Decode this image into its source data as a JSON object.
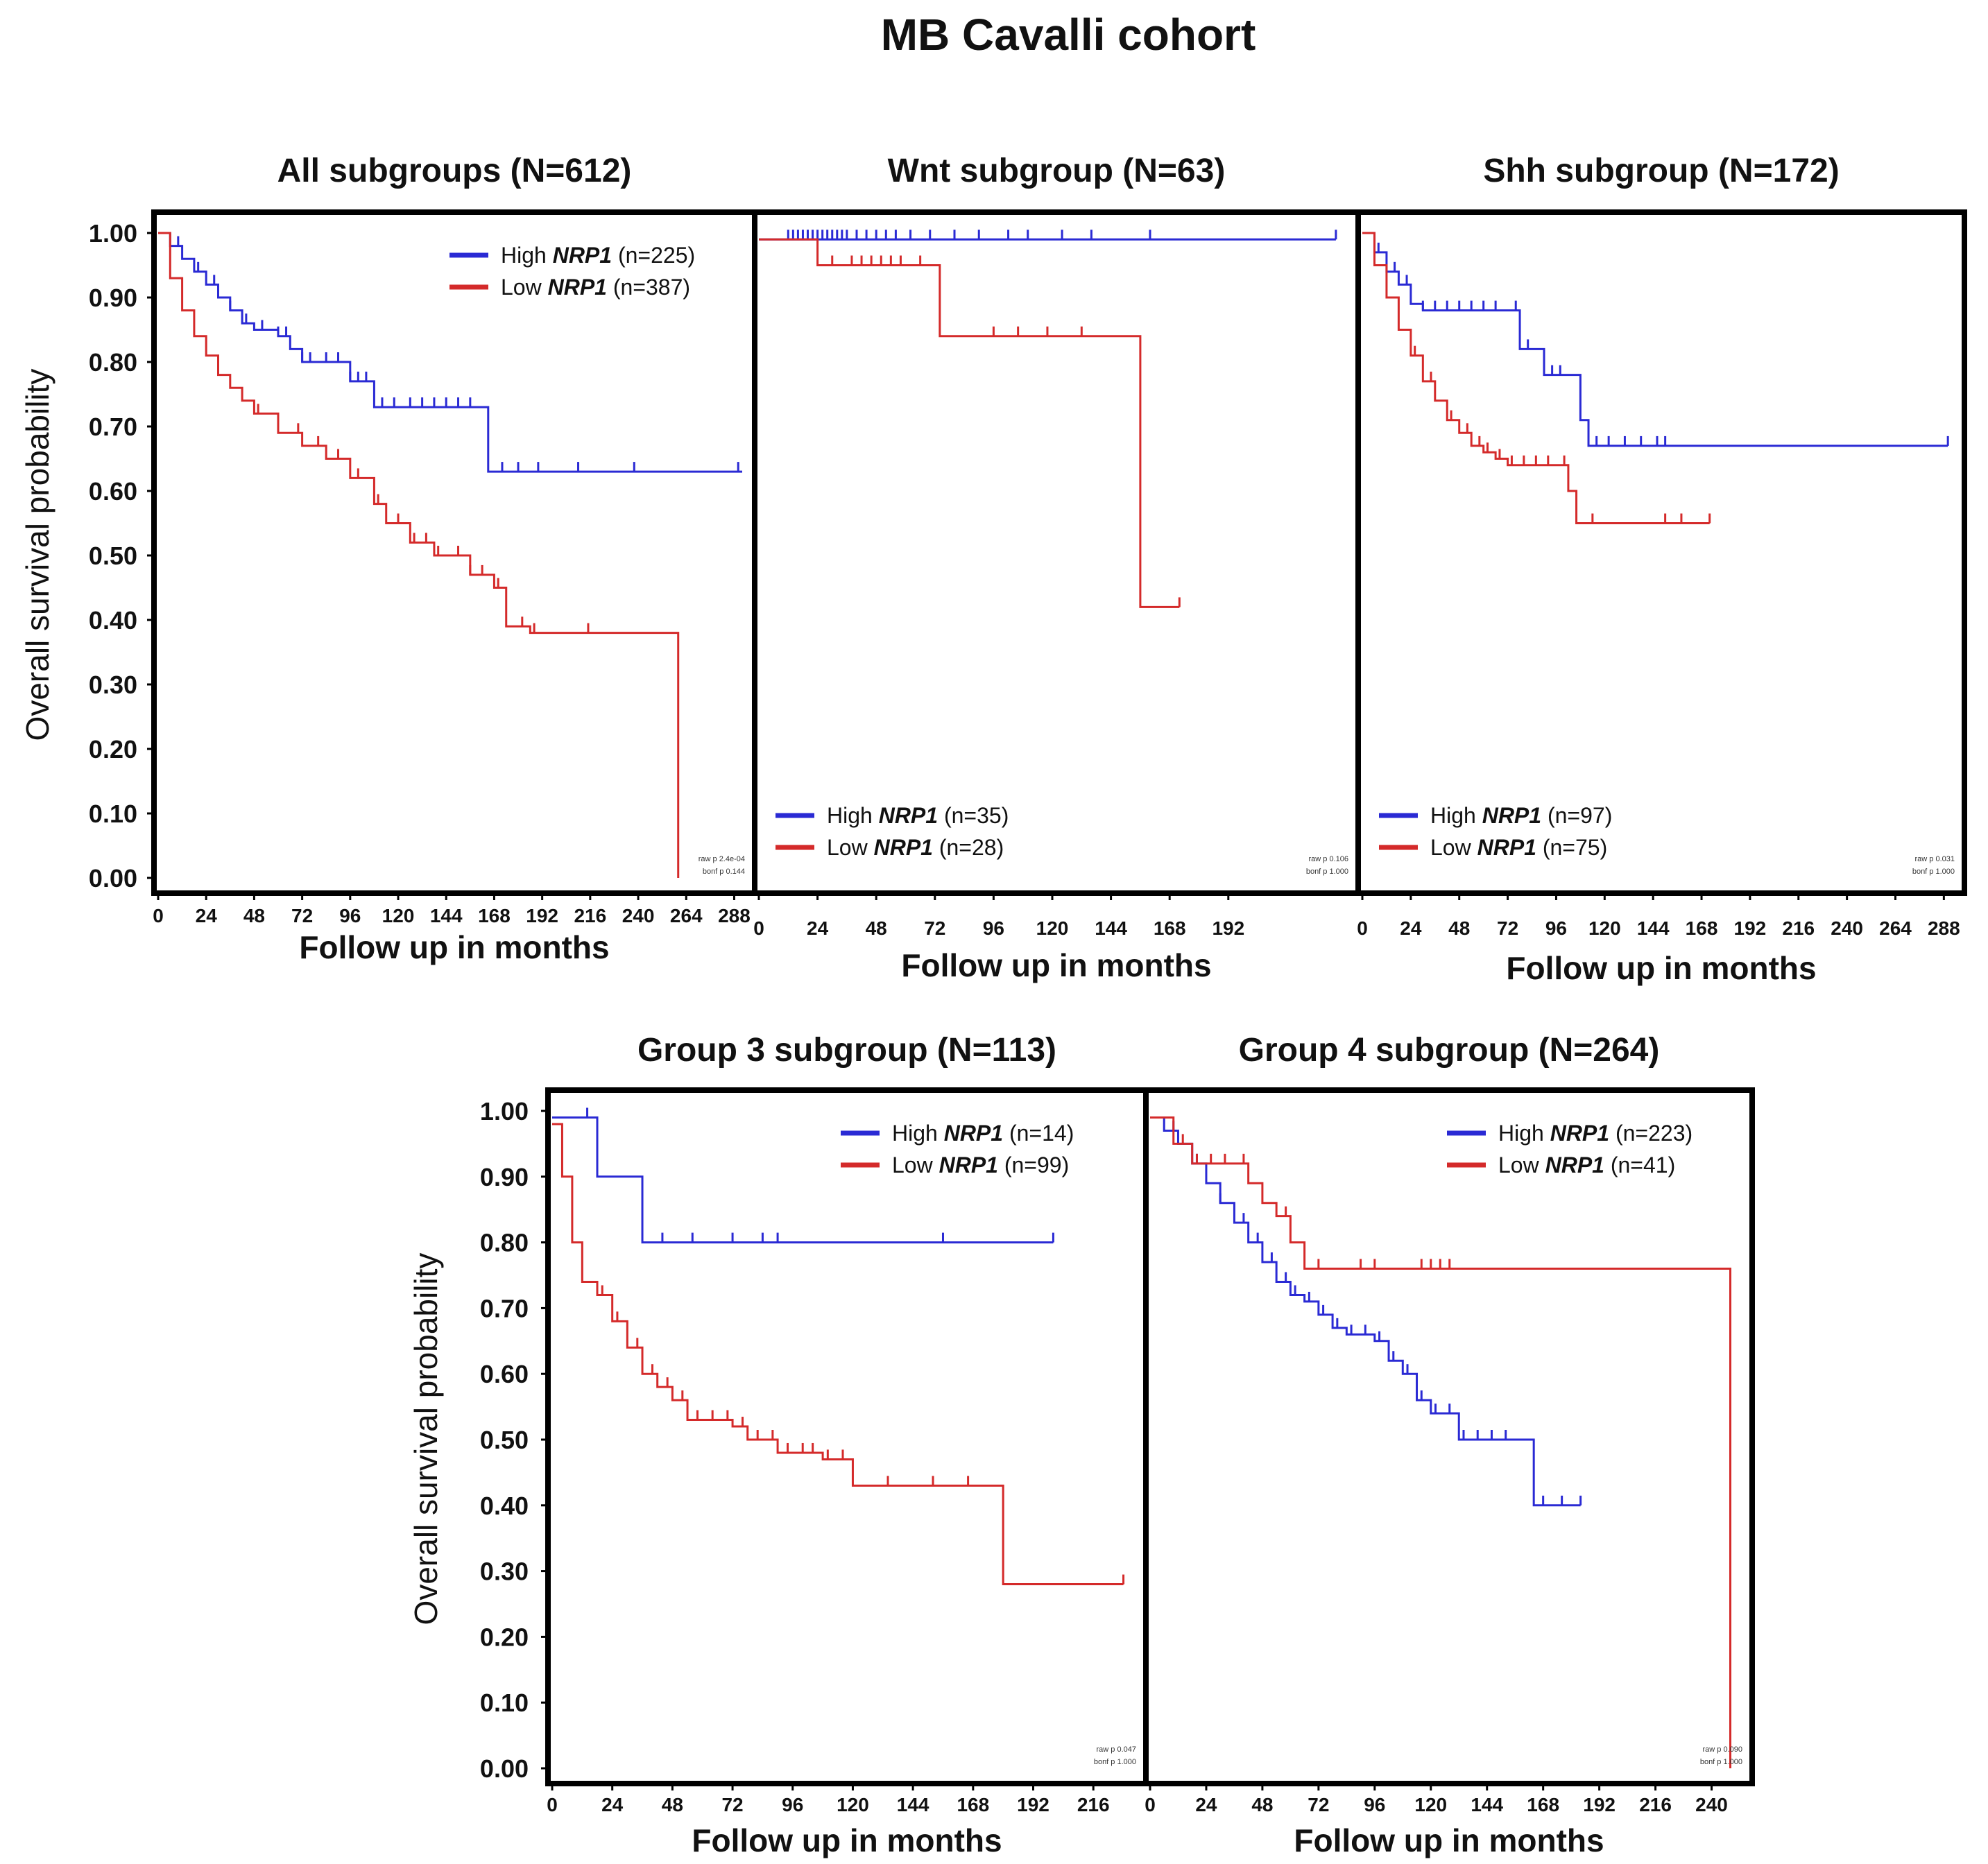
{
  "figure_title": "MB Cavalli cohort",
  "colors": {
    "high": "#2a2ad4",
    "low": "#d42a2a",
    "frame": "#000000"
  },
  "chart_data": [
    {
      "type": "line",
      "title": "All subgroups (N=612)",
      "xlabel": "Follow up in months",
      "ylabel": "Overall survival probability",
      "xlim": [
        0,
        292
      ],
      "ylim": [
        0,
        1.0
      ],
      "xticks": [
        "0",
        "24",
        "48",
        "72",
        "96",
        "120",
        "144",
        "168",
        "192",
        "216",
        "240",
        "264",
        "288"
      ],
      "yticks": [
        "0.00",
        "0.10",
        "0.20",
        "0.30",
        "0.40",
        "0.50",
        "0.60",
        "0.70",
        "0.80",
        "0.90",
        "1.00"
      ],
      "show_ylabel": true,
      "legend_position": "top-right",
      "stats": [
        "raw p 2.4e-04",
        "bonf p 0.144"
      ],
      "series": [
        {
          "name": "High",
          "gene": "NRP1",
          "n": "(n=225)",
          "color_key": "high",
          "x": [
            0,
            6,
            12,
            18,
            24,
            30,
            36,
            42,
            48,
            60,
            66,
            72,
            84,
            96,
            108,
            120,
            144,
            160,
            165,
            292
          ],
          "y": [
            1.0,
            0.98,
            0.96,
            0.94,
            0.92,
            0.9,
            0.88,
            0.86,
            0.85,
            0.84,
            0.82,
            0.8,
            0.8,
            0.77,
            0.73,
            0.73,
            0.73,
            0.73,
            0.63,
            0.63
          ],
          "censor": [
            10,
            20,
            28,
            36,
            44,
            52,
            60,
            64,
            72,
            76,
            84,
            90,
            96,
            100,
            104,
            112,
            118,
            126,
            132,
            138,
            144,
            150,
            156,
            172,
            180,
            190,
            210,
            238,
            290
          ]
        },
        {
          "name": "Low",
          "gene": "NRP1",
          "n": "(n=387)",
          "color_key": "low",
          "x": [
            0,
            6,
            12,
            18,
            24,
            30,
            36,
            42,
            48,
            60,
            72,
            84,
            96,
            108,
            114,
            126,
            138,
            150,
            156,
            168,
            174,
            186,
            216,
            240,
            246,
            258,
            260
          ],
          "y": [
            1.0,
            0.93,
            0.88,
            0.84,
            0.81,
            0.78,
            0.76,
            0.74,
            0.72,
            0.69,
            0.67,
            0.65,
            0.62,
            0.58,
            0.55,
            0.52,
            0.5,
            0.5,
            0.47,
            0.45,
            0.39,
            0.38,
            0.38,
            0.38,
            0.38,
            0.38,
            0.0
          ],
          "censor": [
            50,
            60,
            70,
            80,
            90,
            100,
            110,
            120,
            128,
            134,
            140,
            150,
            156,
            162,
            170,
            182,
            188,
            215
          ]
        }
      ]
    },
    {
      "type": "line",
      "title": "Wnt subgroup (N=63)",
      "xlabel": "Follow up in months",
      "ylabel": "",
      "xlim": [
        0,
        240
      ],
      "ylim": [
        0,
        1.0
      ],
      "xticks": [
        "0",
        "24",
        "48",
        "72",
        "96",
        "120",
        "144",
        "168",
        "192"
      ],
      "yticks": [],
      "show_ylabel": false,
      "legend_position": "bottom-left",
      "stats": [
        "raw p 0.106",
        "bonf p 1.000"
      ],
      "series": [
        {
          "name": "High",
          "gene": "NRP1",
          "n": "(n=35)",
          "color_key": "high",
          "x": [
            0,
            236
          ],
          "y": [
            0.99,
            0.99
          ],
          "censor": [
            12,
            14,
            16,
            18,
            20,
            22,
            24,
            26,
            28,
            30,
            32,
            34,
            36,
            40,
            44,
            48,
            52,
            56,
            62,
            70,
            80,
            90,
            102,
            110,
            124,
            136,
            160,
            236
          ]
        },
        {
          "name": "Low",
          "gene": "NRP1",
          "n": "(n=28)",
          "color_key": "low",
          "x": [
            0,
            24,
            72,
            74,
            152,
            156,
            172
          ],
          "y": [
            0.99,
            0.95,
            0.95,
            0.84,
            0.84,
            0.42,
            0.42
          ],
          "censor": [
            30,
            38,
            42,
            46,
            50,
            54,
            58,
            66,
            96,
            106,
            118,
            132,
            172
          ]
        }
      ]
    },
    {
      "type": "line",
      "title": "Shh subgroup (N=172)",
      "xlabel": "Follow up in months",
      "ylabel": "",
      "xlim": [
        0,
        292
      ],
      "ylim": [
        0,
        1.0
      ],
      "xticks": [
        "0",
        "24",
        "48",
        "72",
        "96",
        "120",
        "144",
        "168",
        "192",
        "216",
        "240",
        "264",
        "288"
      ],
      "yticks": [],
      "show_ylabel": false,
      "legend_position": "bottom-left",
      "stats": [
        "raw p 0.031",
        "bonf p 1.000"
      ],
      "series": [
        {
          "name": "High",
          "gene": "NRP1",
          "n": "(n=97)",
          "color_key": "high",
          "x": [
            0,
            6,
            12,
            18,
            24,
            30,
            72,
            78,
            90,
            100,
            108,
            112,
            290
          ],
          "y": [
            1.0,
            0.97,
            0.94,
            0.92,
            0.89,
            0.88,
            0.88,
            0.82,
            0.78,
            0.78,
            0.71,
            0.67,
            0.67
          ],
          "censor": [
            8,
            16,
            22,
            30,
            36,
            42,
            48,
            54,
            60,
            66,
            76,
            82,
            94,
            98,
            116,
            122,
            130,
            138,
            146,
            150,
            290
          ]
        },
        {
          "name": "Low",
          "gene": "NRP1",
          "n": "(n=75)",
          "color_key": "low",
          "x": [
            0,
            6,
            12,
            18,
            24,
            30,
            36,
            42,
            48,
            54,
            60,
            66,
            72,
            78,
            96,
            102,
            106,
            172
          ],
          "y": [
            1.0,
            0.95,
            0.9,
            0.85,
            0.81,
            0.77,
            0.74,
            0.71,
            0.69,
            0.67,
            0.66,
            0.65,
            0.64,
            0.64,
            0.64,
            0.6,
            0.55,
            0.55
          ],
          "censor": [
            26,
            34,
            44,
            52,
            58,
            62,
            68,
            74,
            80,
            86,
            92,
            100,
            114,
            150,
            158,
            172
          ]
        }
      ]
    },
    {
      "type": "line",
      "title": "Group 3 subgroup (N=113)",
      "xlabel": "Follow up in months",
      "ylabel": "Overall survival probability",
      "xlim": [
        0,
        232
      ],
      "ylim": [
        0,
        1.0
      ],
      "xticks": [
        "0",
        "24",
        "48",
        "72",
        "96",
        "120",
        "144",
        "168",
        "192",
        "216"
      ],
      "yticks": [
        "0.00",
        "0.10",
        "0.20",
        "0.30",
        "0.40",
        "0.50",
        "0.60",
        "0.70",
        "0.80",
        "0.90",
        "1.00"
      ],
      "show_ylabel": true,
      "legend_position": "top-right",
      "stats": [
        "raw p 0.047",
        "bonf p 1.000"
      ],
      "series": [
        {
          "name": "High",
          "gene": "NRP1",
          "n": "(n=14)",
          "color_key": "high",
          "x": [
            0,
            16,
            18,
            32,
            36,
            200
          ],
          "y": [
            0.99,
            0.99,
            0.9,
            0.9,
            0.8,
            0.8
          ],
          "censor": [
            14,
            44,
            56,
            72,
            84,
            90,
            156,
            200
          ]
        },
        {
          "name": "Low",
          "gene": "NRP1",
          "n": "(n=99)",
          "color_key": "low",
          "x": [
            0,
            4,
            8,
            12,
            18,
            24,
            30,
            36,
            42,
            48,
            54,
            60,
            66,
            72,
            78,
            84,
            90,
            96,
            108,
            120,
            132,
            144,
            156,
            170,
            180,
            190,
            228
          ],
          "y": [
            0.98,
            0.9,
            0.8,
            0.74,
            0.72,
            0.68,
            0.64,
            0.6,
            0.58,
            0.56,
            0.53,
            0.53,
            0.53,
            0.52,
            0.5,
            0.5,
            0.48,
            0.48,
            0.47,
            0.43,
            0.43,
            0.43,
            0.43,
            0.43,
            0.28,
            0.28,
            0.28
          ],
          "censor": [
            20,
            26,
            34,
            40,
            46,
            52,
            58,
            64,
            70,
            76,
            82,
            88,
            94,
            100,
            104,
            110,
            116,
            134,
            152,
            166,
            228
          ]
        }
      ]
    },
    {
      "type": "line",
      "title": "Group 4 subgroup (N=264)",
      "xlabel": "Follow up in months",
      "ylabel": "",
      "xlim": [
        0,
        252
      ],
      "ylim": [
        0,
        1.0
      ],
      "xticks": [
        "0",
        "24",
        "48",
        "72",
        "96",
        "120",
        "144",
        "168",
        "192",
        "216",
        "240"
      ],
      "yticks": [],
      "show_ylabel": false,
      "legend_position": "top-right",
      "stats": [
        "raw p 0.090",
        "bonf p 1.000"
      ],
      "series": [
        {
          "name": "High",
          "gene": "NRP1",
          "n": "(n=223)",
          "color_key": "high",
          "x": [
            0,
            6,
            12,
            18,
            24,
            30,
            36,
            42,
            48,
            54,
            60,
            66,
            72,
            78,
            84,
            90,
            96,
            102,
            108,
            114,
            120,
            126,
            132,
            144,
            156,
            160,
            164,
            184
          ],
          "y": [
            0.99,
            0.97,
            0.95,
            0.92,
            0.89,
            0.86,
            0.83,
            0.8,
            0.77,
            0.74,
            0.72,
            0.71,
            0.69,
            0.67,
            0.66,
            0.66,
            0.65,
            0.62,
            0.6,
            0.56,
            0.54,
            0.54,
            0.5,
            0.5,
            0.5,
            0.5,
            0.4,
            0.4
          ],
          "censor": [
            10,
            20,
            30,
            40,
            46,
            52,
            58,
            62,
            68,
            74,
            80,
            86,
            92,
            98,
            104,
            110,
            116,
            122,
            128,
            134,
            140,
            146,
            152,
            168,
            176,
            184
          ]
        },
        {
          "name": "Low",
          "gene": "NRP1",
          "n": "(n=41)",
          "color_key": "low",
          "x": [
            0,
            10,
            18,
            36,
            42,
            48,
            54,
            60,
            66,
            72,
            90,
            120,
            246,
            248
          ],
          "y": [
            0.99,
            0.95,
            0.92,
            0.92,
            0.89,
            0.86,
            0.84,
            0.8,
            0.76,
            0.76,
            0.76,
            0.76,
            0.76,
            0.0
          ],
          "censor": [
            14,
            20,
            26,
            32,
            40,
            58,
            72,
            90,
            96,
            116,
            120,
            124,
            128
          ]
        }
      ]
    }
  ]
}
